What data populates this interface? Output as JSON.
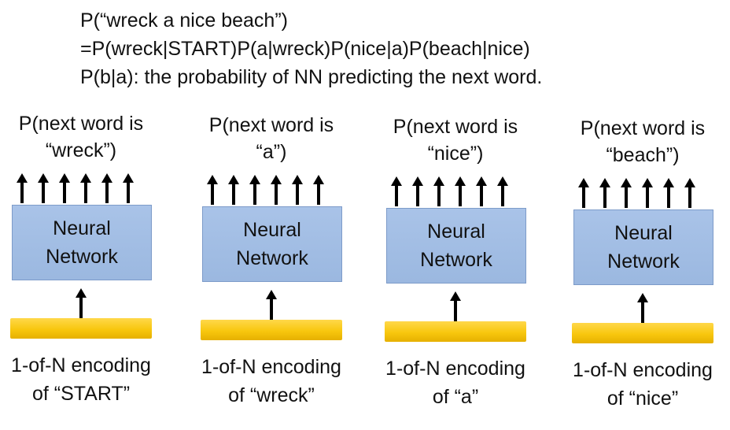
{
  "header": {
    "line1": "P(“wreck a nice beach”)",
    "line2": "=P(wreck|START)P(a|wreck)P(nice|a)P(beach|nice)",
    "line3": "P(b|a): the probability of NN predicting the next word."
  },
  "colors": {
    "nn_box_fill": "#9bb8e0",
    "nn_box_border": "#7d9bc9",
    "encoding_bar": "#f8c70e",
    "arrow": "#000000"
  },
  "columns": [
    {
      "top_line1": "P(next word is",
      "top_line2": "“wreck”)",
      "nn_line1": "Neural",
      "nn_line2": "Network",
      "enc_line1": "1-of-N encoding",
      "enc_line2": "of “START”"
    },
    {
      "top_line1": "P(next word is",
      "top_line2": "“a”)",
      "nn_line1": "Neural",
      "nn_line2": "Network",
      "enc_line1": "1-of-N encoding",
      "enc_line2": "of “wreck”"
    },
    {
      "top_line1": "P(next word is",
      "top_line2": "“nice”)",
      "nn_line1": "Neural",
      "nn_line2": "Network",
      "enc_line1": "1-of-N encoding",
      "enc_line2": "of “a”"
    },
    {
      "top_line1": "P(next word is",
      "top_line2": "“beach”)",
      "nn_line1": "Neural",
      "nn_line2": "Network",
      "enc_line1": "1-of-N encoding",
      "enc_line2": "of “nice”"
    }
  ]
}
